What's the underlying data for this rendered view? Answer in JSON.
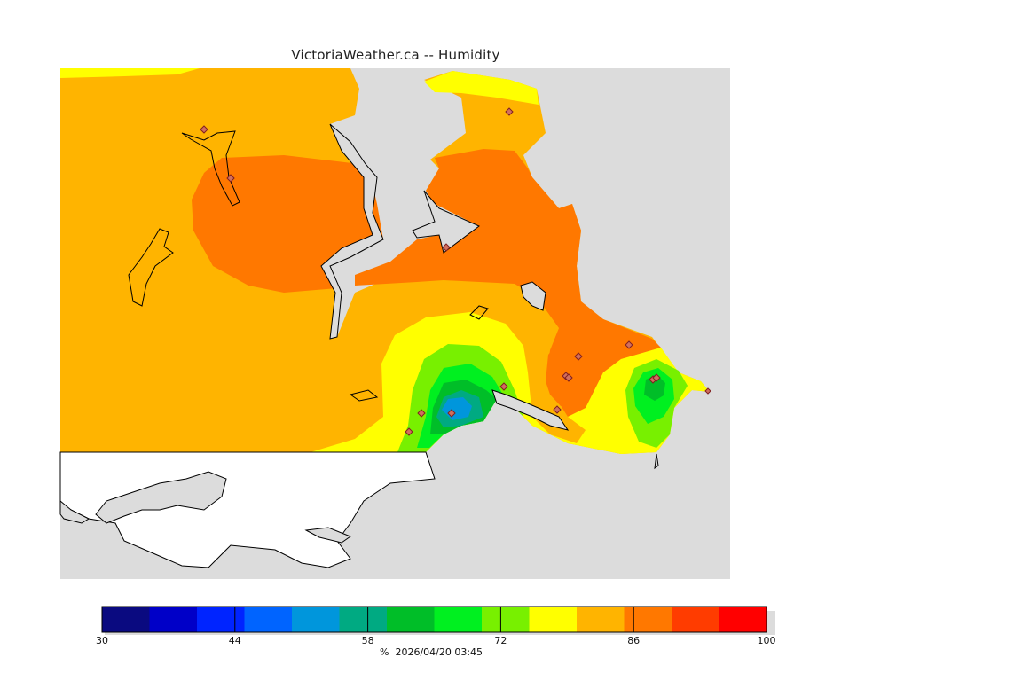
{
  "title": "VictoriaWeather.ca -- Humidity",
  "footer": {
    "unit": "%",
    "timestamp": "2026/04/20 03:45"
  },
  "legend": {
    "min": 30,
    "max": 100,
    "tick_labels": [
      "30",
      "44",
      "58",
      "72",
      "86",
      "100"
    ],
    "bands": [
      {
        "from": 30,
        "to": 35,
        "color": "#0a0a80"
      },
      {
        "from": 35,
        "to": 40,
        "color": "#0000c8"
      },
      {
        "from": 40,
        "to": 45,
        "color": "#0024ff"
      },
      {
        "from": 45,
        "to": 50,
        "color": "#0064ff"
      },
      {
        "from": 50,
        "to": 55,
        "color": "#0096dc"
      },
      {
        "from": 55,
        "to": 60,
        "color": "#00aa82"
      },
      {
        "from": 60,
        "to": 65,
        "color": "#00be28"
      },
      {
        "from": 65,
        "to": 70,
        "color": "#00f020"
      },
      {
        "from": 70,
        "to": 75,
        "color": "#78f000"
      },
      {
        "from": 75,
        "to": 80,
        "color": "#ffff00"
      },
      {
        "from": 80,
        "to": 85,
        "color": "#ffb400"
      },
      {
        "from": 85,
        "to": 90,
        "color": "#ff7800"
      },
      {
        "from": 90,
        "to": 95,
        "color": "#ff3c00"
      },
      {
        "from": 95,
        "to": 100,
        "color": "#ff0000"
      }
    ]
  },
  "colors": {
    "water": "#dcdcdc",
    "outside_domain_land": "#ffffff",
    "station_marker": "#d07060"
  },
  "station_count": 16
}
